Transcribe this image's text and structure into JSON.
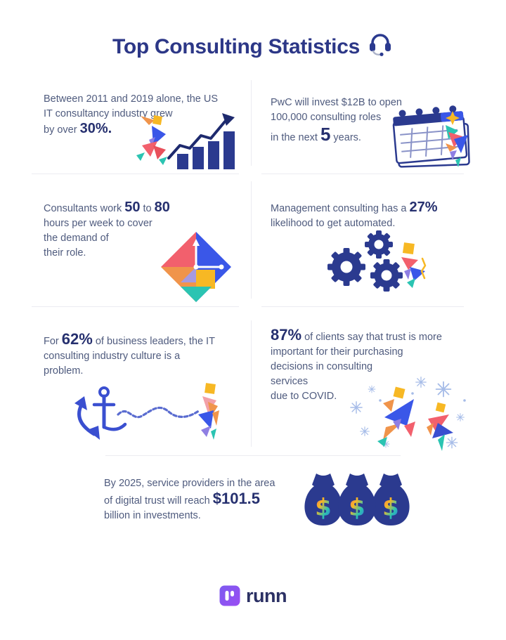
{
  "page": {
    "title": "Top Consulting Statistics",
    "title_icon": "headset-icon",
    "background": "#ffffff"
  },
  "palette": {
    "title_navy": "#2c3787",
    "body_text": "#4f5b7e",
    "bold_navy": "#26306f",
    "illustration_navy": "#2b3a8f",
    "bright_blue": "#3a57e8",
    "yellow": "#f7b824",
    "orange": "#f0944b",
    "pink": "#f2606d",
    "teal": "#2bc4b2",
    "purple": "#8f7fe3",
    "light_blue_flake": "#a6bce8",
    "divider_gray": "#ececf1",
    "logo_purple": "#8a5cf5"
  },
  "stats": [
    {
      "illustration": "runner-growth-chart-illustration",
      "segments": [
        {
          "text": "Between 2011 and 2019 alone, the US"
        },
        {
          "br": true
        },
        {
          "text": "IT consultancy industry grew"
        },
        {
          "br": true
        },
        {
          "text": "by over ",
          "bold": false
        },
        {
          "text": "30%.",
          "bold": true
        }
      ]
    },
    {
      "illustration": "calendar-illustration",
      "segments": [
        {
          "text": "PwC will invest $12B to open"
        },
        {
          "br": true
        },
        {
          "text": "100,000 consulting roles"
        },
        {
          "br": true
        },
        {
          "text": "in the next ",
          "bold": false
        },
        {
          "text": "5",
          "bold": true,
          "size": "xl"
        },
        {
          "text": " years.",
          "bold": false
        }
      ]
    },
    {
      "illustration": "diamond-clock-illustration",
      "segments": [
        {
          "text": "Consultants work ",
          "bold": false
        },
        {
          "text": "50",
          "bold": true
        },
        {
          "text": " to ",
          "bold": false
        },
        {
          "text": "80",
          "bold": true
        },
        {
          "br": true
        },
        {
          "text": "hours per week to cover"
        },
        {
          "br": true
        },
        {
          "text": "the demand of"
        },
        {
          "br": true
        },
        {
          "text": "their role."
        }
      ]
    },
    {
      "illustration": "gears-automation-illustration",
      "segments": [
        {
          "text": "Management consulting has a ",
          "bold": false
        },
        {
          "text": "27%",
          "bold": true
        },
        {
          "br": true
        },
        {
          "text": "likelihood to get automated."
        }
      ]
    },
    {
      "illustration": "anchor-chain-illustration",
      "segments": [
        {
          "text": "For ",
          "bold": false
        },
        {
          "text": "62%",
          "bold": true,
          "size": "lg"
        },
        {
          "text": " of business leaders, the IT",
          "bold": false
        },
        {
          "br": true
        },
        {
          "text": "consulting industry culture is a"
        },
        {
          "br": true
        },
        {
          "text": "problem."
        }
      ]
    },
    {
      "illustration": "covid-trust-people-illustration",
      "segments": [
        {
          "text": "87%",
          "bold": true,
          "size": "lg"
        },
        {
          "text": " of clients say that trust is more",
          "bold": false
        },
        {
          "br": true
        },
        {
          "text": "important for their purchasing"
        },
        {
          "br": true
        },
        {
          "text": "decisions in consulting"
        },
        {
          "br": true
        },
        {
          "text": "services"
        },
        {
          "br": true
        },
        {
          "text": "due to COVID."
        }
      ]
    },
    {
      "illustration": "money-bags-illustration",
      "segments": [
        {
          "text": "By 2025, service providers in the area"
        },
        {
          "br": true
        },
        {
          "text": "of digital trust will reach ",
          "bold": false
        },
        {
          "text": "$101.5",
          "bold": true,
          "size": "lg"
        },
        {
          "br": true
        },
        {
          "text": "billion in investments."
        }
      ]
    }
  ],
  "footer": {
    "logo_text": "runn",
    "logo_icon": "runn-logo-icon"
  }
}
